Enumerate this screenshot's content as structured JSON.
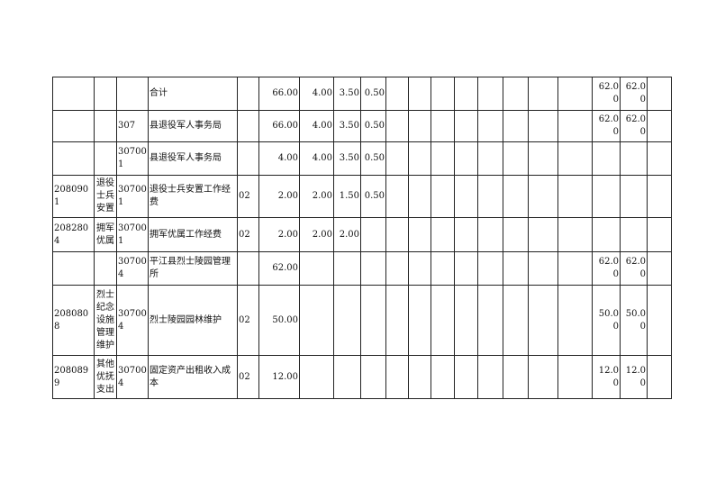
{
  "table": {
    "rows": [
      [
        null,
        null,
        null,
        "合计",
        null,
        "66.00",
        "4.00",
        "3.50",
        "0.50",
        null,
        null,
        null,
        null,
        null,
        null,
        null,
        null,
        "62.00",
        "62.00",
        null
      ],
      [
        null,
        null,
        "307",
        "县退役军人事务局",
        null,
        "66.00",
        "4.00",
        "3.50",
        "0.50",
        null,
        null,
        null,
        null,
        null,
        null,
        null,
        null,
        "62.00",
        "62.00",
        null
      ],
      [
        null,
        null,
        "307001",
        "县退役军人事务局",
        null,
        "4.00",
        "4.00",
        "3.50",
        "0.50",
        null,
        null,
        null,
        null,
        null,
        null,
        null,
        null,
        null,
        null,
        null
      ],
      [
        "2080901",
        "退役士兵安置",
        "307001",
        "退役士兵安置工作经费",
        "02",
        "2.00",
        "2.00",
        "1.50",
        "0.50",
        null,
        null,
        null,
        null,
        null,
        null,
        null,
        null,
        null,
        null,
        null
      ],
      [
        "2082804",
        "拥军优属",
        "307001",
        "拥军优属工作经费",
        "02",
        "2.00",
        "2.00",
        "2.00",
        null,
        null,
        null,
        null,
        null,
        null,
        null,
        null,
        null,
        null,
        null,
        null
      ],
      [
        null,
        null,
        "307004",
        "平江县烈士陵园管理所",
        null,
        "62.00",
        null,
        null,
        null,
        null,
        null,
        null,
        null,
        null,
        null,
        null,
        null,
        "62.00",
        "62.00",
        null
      ],
      [
        "2080808",
        "烈士纪念设施管理维护",
        "307004",
        "烈士陵园园林维护",
        "02",
        "50.00",
        null,
        null,
        null,
        null,
        null,
        null,
        null,
        null,
        null,
        null,
        null,
        "50.00",
        "50.00",
        null
      ],
      [
        "2080899",
        "其他优抚支出",
        "307004",
        "固定资产出租收入成本",
        "02",
        "12.00",
        null,
        null,
        null,
        null,
        null,
        null,
        null,
        null,
        null,
        null,
        null,
        "12.00",
        "12.00",
        null
      ]
    ]
  }
}
